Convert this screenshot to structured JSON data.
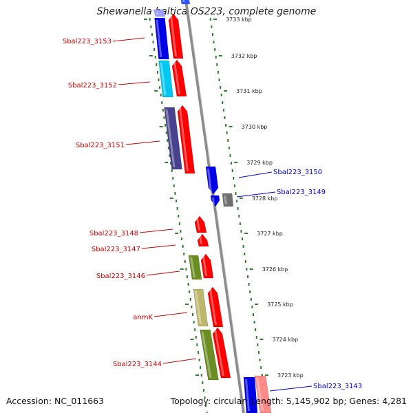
{
  "title": "Shewanella baltica OS223, complete genome",
  "footer": {
    "accession": "Accession: NC_011663",
    "summary": "Topology: circular; Length: 5,145,902 bp; Genes: 4,281"
  },
  "colors": {
    "backbone": "#8c8c8c",
    "ruler_dots": "#2e7d2e",
    "label_red": "#cc0000",
    "label_blue": "#0000cc",
    "tick_text": "#222222"
  },
  "ticks": [
    {
      "label": "3733 kbp"
    },
    {
      "label": "3732 kbp"
    },
    {
      "label": "3731 kbp"
    },
    {
      "label": "3730 kbp"
    },
    {
      "label": "3729 kbp"
    },
    {
      "label": "3728 kbp"
    },
    {
      "label": "3727 kbp"
    },
    {
      "label": "3726 kbp"
    },
    {
      "label": "3725 kbp"
    },
    {
      "label": "3724 kbp"
    },
    {
      "label": "3723 kbp"
    }
  ],
  "genes": [
    {
      "label": "Sbal223_3153",
      "color": "#0000e6",
      "strand": "minus"
    },
    {
      "label": "Sbal223_3152",
      "color": "#00c8f0",
      "strand": "minus"
    },
    {
      "label": "Sbal223_3151",
      "color": "#48418e",
      "strand": "minus"
    },
    {
      "label": "Sbal223_3150",
      "color": "#0000e6",
      "strand": "plus"
    },
    {
      "label": "Sbal223_3149",
      "color": "#707070",
      "strand": "plus"
    },
    {
      "label": "Sbal223_3148",
      "color": "#ff0000",
      "strand": "minus"
    },
    {
      "label": "Sbal223_3147",
      "color": "#ff0000",
      "strand": "minus"
    },
    {
      "label": "Sbal223_3146",
      "color": "#6b8e23",
      "strand": "minus"
    },
    {
      "label": "anmK",
      "color": "#bdb76b",
      "strand": "minus"
    },
    {
      "label": "Sbal223_3144",
      "color": "#6b8e23",
      "strand": "minus"
    },
    {
      "label": "Sbal223_3143",
      "color": "#0000e6",
      "strand": "plus"
    }
  ]
}
